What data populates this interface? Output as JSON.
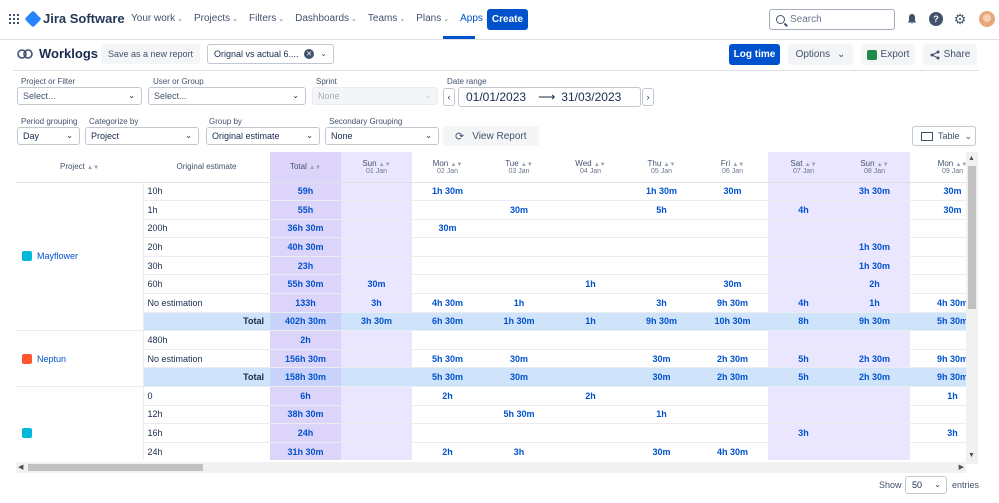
{
  "topnav": {
    "app_name": "Jira Software",
    "menu": [
      {
        "label": "Your work"
      },
      {
        "label": "Projects"
      },
      {
        "label": "Filters"
      },
      {
        "label": "Dashboards"
      },
      {
        "label": "Teams"
      },
      {
        "label": "Plans"
      },
      {
        "label": "Apps"
      }
    ],
    "active_menu": "Apps",
    "create_label": "Create",
    "search_placeholder": "Search"
  },
  "header": {
    "title": "Worklogs",
    "save_report_label": "Save as a new report",
    "report_value": "Orignal vs actual 6....",
    "log_time_label": "Log time",
    "options_label": "Options",
    "export_label": "Export",
    "share_label": "Share"
  },
  "filters": {
    "project_label": "Project or Filter",
    "project_placeholder": "Select...",
    "user_label": "User or Group",
    "user_placeholder": "Select...",
    "sprint_label": "Sprint",
    "sprint_placeholder": "None",
    "date_label": "Date range",
    "date_from": "01/01/2023",
    "date_to": "31/03/2023",
    "period_label": "Period grouping",
    "period_value": "Day",
    "categorize_label": "Categorize by",
    "categorize_value": "Project",
    "groupby_label": "Group by",
    "groupby_value": "Original estimate",
    "secondary_label": "Secondary Grouping",
    "secondary_value": "None",
    "view_report_label": "View Report",
    "view_toggle_label": "Table"
  },
  "table": {
    "project_header": "Project",
    "estimate_header": "Original estimate",
    "total_header": "Total",
    "days": [
      {
        "day": "Sun",
        "date": "01 Jan",
        "weekend": true
      },
      {
        "day": "Mon",
        "date": "02 Jan",
        "weekend": false
      },
      {
        "day": "Tue",
        "date": "03 Jan",
        "weekend": false
      },
      {
        "day": "Wed",
        "date": "04 Jan",
        "weekend": false
      },
      {
        "day": "Thu",
        "date": "05 Jan",
        "weekend": false
      },
      {
        "day": "Fri",
        "date": "06 Jan",
        "weekend": false
      },
      {
        "day": "Sat",
        "date": "07 Jan",
        "weekend": true
      },
      {
        "day": "Sun",
        "date": "08 Jan",
        "weekend": true
      },
      {
        "day": "Mon",
        "date": "09 Jan",
        "weekend": false
      }
    ],
    "groups": [
      {
        "project": "Mayflower",
        "icon_color": "#00b8d9",
        "rows": [
          {
            "estimate": "10h",
            "total": "59h",
            "cells": [
              "",
              "1h 30m",
              "",
              "",
              "1h 30m",
              "30m",
              "",
              "3h 30m",
              "30m"
            ]
          },
          {
            "estimate": "1h",
            "total": "55h",
            "cells": [
              "",
              "",
              "30m",
              "",
              "5h",
              "",
              "4h",
              "",
              "30m"
            ]
          },
          {
            "estimate": "200h",
            "total": "36h 30m",
            "cells": [
              "",
              "30m",
              "",
              "",
              "",
              "",
              "",
              "",
              ""
            ]
          },
          {
            "estimate": "20h",
            "total": "40h 30m",
            "cells": [
              "",
              "",
              "",
              "",
              "",
              "",
              "",
              "1h 30m",
              ""
            ]
          },
          {
            "estimate": "30h",
            "total": "23h",
            "cells": [
              "",
              "",
              "",
              "",
              "",
              "",
              "",
              "1h 30m",
              ""
            ]
          },
          {
            "estimate": "60h",
            "total": "55h 30m",
            "cells": [
              "30m",
              "",
              "",
              "1h",
              "",
              "30m",
              "",
              "2h",
              ""
            ]
          },
          {
            "estimate": "No estimation",
            "total": "133h",
            "cells": [
              "3h",
              "4h 30m",
              "1h",
              "",
              "3h",
              "9h 30m",
              "4h",
              "1h",
              "4h 30m"
            ]
          }
        ],
        "total_label": "Total",
        "total": {
          "total": "402h 30m",
          "cells": [
            "3h 30m",
            "6h 30m",
            "1h 30m",
            "1h",
            "9h 30m",
            "10h 30m",
            "8h",
            "9h 30m",
            "5h 30m"
          ]
        }
      },
      {
        "project": "Neptun",
        "icon_color": "#ff5630",
        "rows": [
          {
            "estimate": "480h",
            "total": "2h",
            "cells": [
              "",
              "",
              "",
              "",
              "",
              "",
              "",
              "",
              ""
            ]
          },
          {
            "estimate": "No estimation",
            "total": "156h 30m",
            "cells": [
              "",
              "5h 30m",
              "30m",
              "",
              "30m",
              "2h 30m",
              "5h",
              "2h 30m",
              "9h 30m"
            ]
          }
        ],
        "total_label": "Total",
        "total": {
          "total": "158h 30m",
          "cells": [
            "",
            "5h 30m",
            "30m",
            "",
            "30m",
            "2h 30m",
            "5h",
            "2h 30m",
            "9h 30m"
          ]
        }
      },
      {
        "project": "",
        "icon_color": "#00b8d9",
        "rows": [
          {
            "estimate": "0",
            "total": "6h",
            "cells": [
              "",
              "2h",
              "",
              "2h",
              "",
              "",
              "",
              "",
              "1h"
            ]
          },
          {
            "estimate": "12h",
            "total": "38h 30m",
            "cells": [
              "",
              "",
              "5h 30m",
              "",
              "1h",
              "",
              "",
              "",
              ""
            ]
          },
          {
            "estimate": "16h",
            "total": "24h",
            "cells": [
              "",
              "",
              "",
              "",
              "",
              "",
              "3h",
              "",
              "3h"
            ]
          },
          {
            "estimate": "24h",
            "total": "31h 30m",
            "cells": [
              "",
              "2h",
              "3h",
              "",
              "30m",
              "4h 30m",
              "",
              "",
              ""
            ]
          },
          {
            "estimate": "",
            "total": "",
            "cells": [
              "",
              "",
              "",
              "",
              "",
              "",
              "",
              "",
              ""
            ]
          }
        ],
        "total_label": "",
        "total": null
      }
    ]
  },
  "footer": {
    "show_label": "Show",
    "entries_value": "50",
    "entries_label": "entries"
  }
}
